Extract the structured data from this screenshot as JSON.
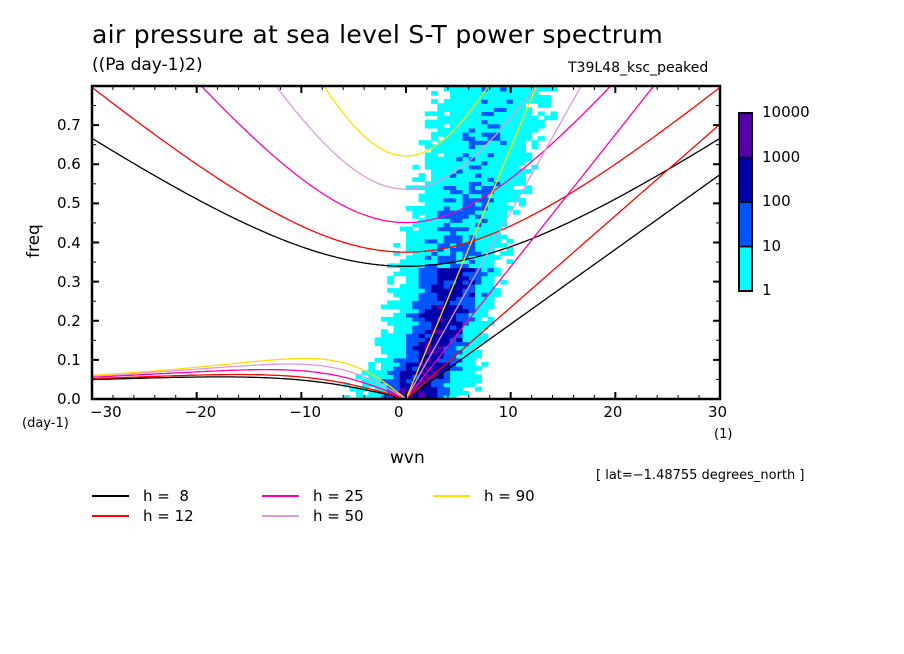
{
  "chart_data": {
    "type": "heatmap",
    "title": "air pressure at sea level S-T power spectrum",
    "units_label": "((Pa day-1)2)",
    "experiment_label": "T39L48_ksc_peaked",
    "xlabel": "wvn",
    "x_units": "(1)",
    "ylabel": "freq",
    "y_units": "(day-1)",
    "xlim": [
      -30,
      30
    ],
    "ylim": [
      0.0,
      0.8
    ],
    "x_ticks": [
      -30,
      -20,
      -10,
      0,
      10,
      20,
      30
    ],
    "x_tick_labels": [
      "−30",
      "−20",
      "−10",
      "0",
      "10",
      "20",
      "30"
    ],
    "y_ticks": [
      0.0,
      0.1,
      0.2,
      0.3,
      0.4,
      0.5,
      0.6,
      0.7
    ],
    "y_tick_labels": [
      "0.0",
      "0.1",
      "0.2",
      "0.3",
      "0.4",
      "0.5",
      "0.6",
      "0.7"
    ],
    "annotation": "[ lat=−1.48755 degrees_north ]",
    "colorbar": {
      "levels": [
        1,
        10,
        100,
        1000,
        10000
      ],
      "level_labels": [
        "1",
        "10",
        "100",
        "1000",
        "10000"
      ],
      "colors": [
        "#00ffff",
        "#0055ff",
        "#0000aa",
        "#5500aa"
      ],
      "scale": "log"
    },
    "spectrum_field": {
      "description": "Power concentrated in a band tilted from the origin toward positive wavenumber (eastward), peak along Kelvin-wave line for h~25-90 m",
      "band_center_slope_freq_per_wvn": 0.055,
      "band_halfwidth_wvn": 7,
      "peak_region": {
        "wvn": [
          0,
          6
        ],
        "freq": [
          0.0,
          0.3
        ],
        "level_index": 2
      },
      "low_freq_westward_extent_wvn": -9
    },
    "series": [
      {
        "name": "h =  8",
        "h": 8,
        "color": "#000000"
      },
      {
        "name": "h = 12",
        "h": 12,
        "color": "#ff0000"
      },
      {
        "name": "h = 25",
        "h": 25,
        "color": "#ff00aa"
      },
      {
        "name": "h = 50",
        "h": 50,
        "color": "#dd99dd"
      },
      {
        "name": "h = 90",
        "h": 90,
        "color": "#ffdd00"
      }
    ],
    "curve_types": [
      "Kelvin",
      "Inertia-gravity n=1",
      "Rossby n=1"
    ],
    "legend": [
      {
        "label": "h =  8",
        "color": "#000000"
      },
      {
        "label": "h = 25",
        "color": "#ff00aa"
      },
      {
        "label": "h = 90",
        "color": "#ffdd00"
      },
      {
        "label": "h = 12",
        "color": "#ff0000"
      },
      {
        "label": "h = 50",
        "color": "#dd99dd"
      }
    ],
    "legend_placement": "bottom-left"
  }
}
